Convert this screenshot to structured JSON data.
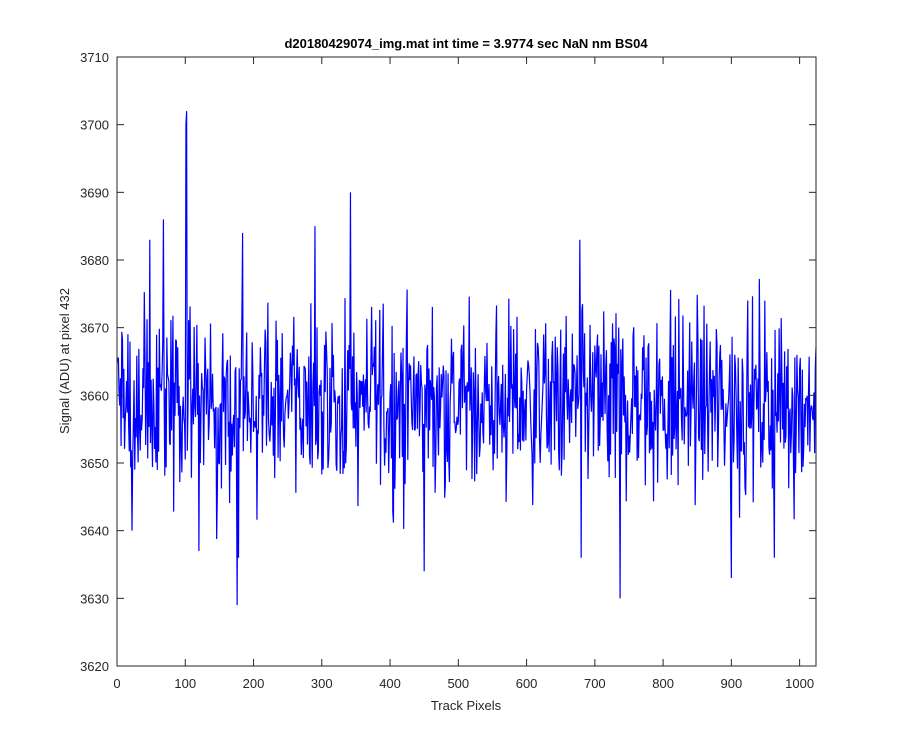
{
  "chart_data": {
    "type": "line",
    "title": "d20180429074_img.mat int time = 3.9774 sec  NaN nm BS04",
    "xlabel": "Track Pixels",
    "ylabel": "Signal (ADU) at pixel 432",
    "xlim": [
      0,
      1024
    ],
    "ylim": [
      3620,
      3710
    ],
    "x_ticks": [
      0,
      100,
      200,
      300,
      400,
      500,
      600,
      700,
      800,
      900,
      1000
    ],
    "y_ticks": [
      3620,
      3630,
      3640,
      3650,
      3660,
      3670,
      3680,
      3690,
      3700,
      3710
    ],
    "grid": false,
    "line_color": "#0000ff",
    "series": [
      {
        "x_start": 1,
        "x_step": 1,
        "mean": 3659,
        "std": 7,
        "n": 1024,
        "notable_points": [
          {
            "x": 102,
            "y": 3702
          },
          {
            "x": 101,
            "y": 3700
          },
          {
            "x": 68,
            "y": 3686
          },
          {
            "x": 342,
            "y": 3690
          },
          {
            "x": 290,
            "y": 3685
          },
          {
            "x": 184,
            "y": 3684
          },
          {
            "x": 48,
            "y": 3683
          },
          {
            "x": 678,
            "y": 3683
          },
          {
            "x": 176,
            "y": 3629
          },
          {
            "x": 737,
            "y": 3630
          },
          {
            "x": 450,
            "y": 3634
          },
          {
            "x": 120,
            "y": 3637
          },
          {
            "x": 178,
            "y": 3636
          },
          {
            "x": 900,
            "y": 3633
          },
          {
            "x": 680,
            "y": 3636
          },
          {
            "x": 963,
            "y": 3636
          },
          {
            "x": 22,
            "y": 3640
          }
        ]
      }
    ]
  }
}
